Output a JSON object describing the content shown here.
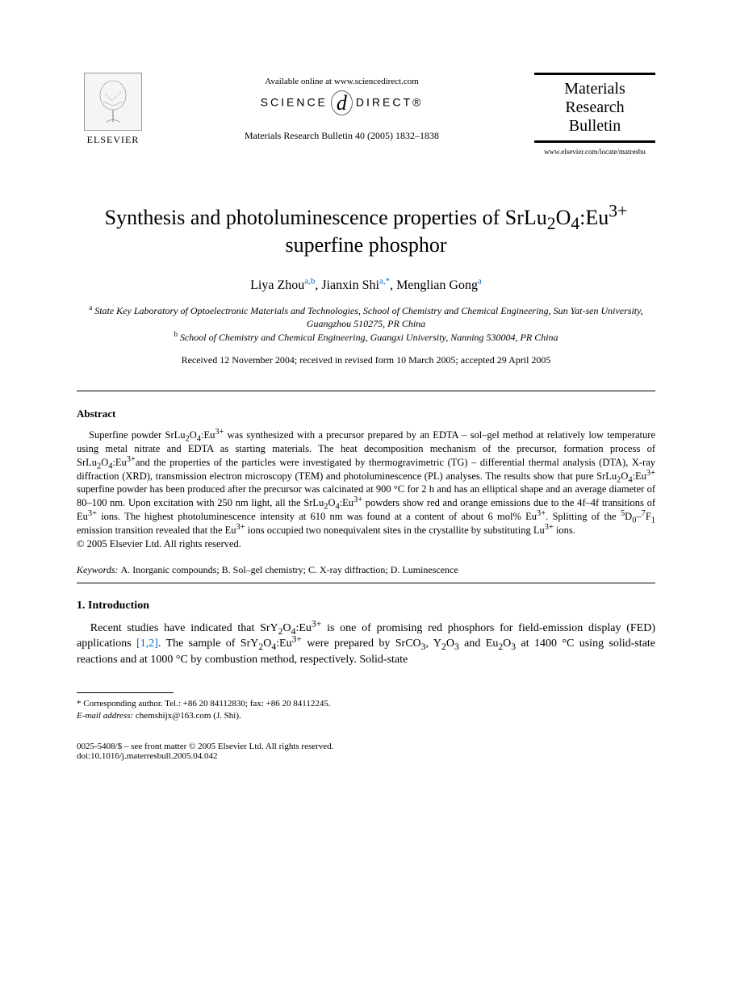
{
  "header": {
    "publisher_label": "ELSEVIER",
    "available_online": "Available online at www.sciencedirect.com",
    "sciencedirect_left": "SCIENCE",
    "sciencedirect_right": "DIRECT®",
    "journal_ref": "Materials Research Bulletin 40 (2005) 1832–1838",
    "journal_name_l1": "Materials",
    "journal_name_l2": "Research",
    "journal_name_l3": "Bulletin",
    "journal_url": "www.elsevier.com/locate/matresbu"
  },
  "title_html": "Synthesis and photoluminescence properties of SrLu<sub>2</sub>O<sub>4</sub>:Eu<sup>3+</sup> superfine phosphor",
  "authors": {
    "a1_name": "Liya Zhou",
    "a1_sup": "a,b",
    "a2_name": "Jianxin Shi",
    "a2_sup": "a,*",
    "a3_name": "Menglian Gong",
    "a3_sup": "a"
  },
  "affiliations": {
    "a_html": "<sup>a</sup> State Key Laboratory of Optoelectronic Materials and Technologies, School of Chemistry and Chemical Engineering, Sun Yat-sen University, Guangzhou 510275, PR China",
    "b_html": "<sup>b</sup> School of Chemistry and Chemical Engineering, Guangxi University, Nanning 530004, PR China"
  },
  "dates": "Received 12 November 2004; received in revised form 10 March 2005; accepted 29 April 2005",
  "abstract_heading": "Abstract",
  "abstract_html": "Superfine powder SrLu<sub>2</sub>O<sub>4</sub>:Eu<sup>3+</sup> was synthesized with a precursor prepared by an EDTA – sol–gel method at relatively low temperature using metal nitrate and EDTA as starting materials. The heat decomposition mechanism of the precursor, formation process of SrLu<sub>2</sub>O<sub>4</sub>:Eu<sup>3+</sup>and the properties of the particles were investigated by thermogravimetric (TG) – differential thermal analysis (DTA), X-ray diffraction (XRD), transmission electron microscopy (TEM) and photoluminescence (PL) analyses. The results show that pure SrLu<sub>2</sub>O<sub>4</sub>:Eu<sup>3+</sup> superfine powder has been produced after the precursor was calcinated at 900 °C for 2 h and has an elliptical shape and an average diameter of 80–100 nm. Upon excitation with 250 nm light, all the SrLu<sub>2</sub>O<sub>4</sub>:Eu<sup>3+</sup> powders show red and orange emissions due to the 4f–4f transitions of Eu<sup>3+</sup> ions. The highest photoluminescence intensity at 610 nm was found at a content of about 6 mol% Eu<sup>3+</sup>. Splitting of the <sup>5</sup>D<sub>0</sub>–<sup>7</sup>F<sub>1</sub> emission transition revealed that the Eu<sup>3+</sup> ions occupied two nonequivalent sites in the crystallite by substituting Lu<sup>3+</sup> ions.",
  "copyright_abstract": "© 2005 Elsevier Ltd. All rights reserved.",
  "keywords_label": "Keywords:",
  "keywords_text": "A. Inorganic compounds; B. Sol–gel chemistry; C. X-ray diffraction; D. Luminescence",
  "intro_heading": "1. Introduction",
  "intro_html": "Recent studies have indicated that SrY<sub>2</sub>O<sub>4</sub>:Eu<sup>3+</sup> is one of promising red phosphors for field-emission display (FED) applications <span class=\"cite\">[1,2]</span>. The sample of SrY<sub>2</sub>O<sub>4</sub>:Eu<sup>3+</sup> were prepared by SrCO<sub>3</sub>, Y<sub>2</sub>O<sub>3</sub> and Eu<sub>2</sub>O<sub>3</sub> at 1400 °C using solid-state reactions and at 1000 °C by combustion method, respectively. Solid-state",
  "footnote_corresponding": "* Corresponding author. Tel.: +86 20 84112830; fax: +86 20 84112245.",
  "footnote_email_label": "E-mail address:",
  "footnote_email_value": "chemshijx@163.com (J. Shi).",
  "footer_copy": "0025-5408/$ – see front matter © 2005 Elsevier Ltd. All rights reserved.",
  "footer_doi": "doi:10.1016/j.materresbull.2005.04.042"
}
